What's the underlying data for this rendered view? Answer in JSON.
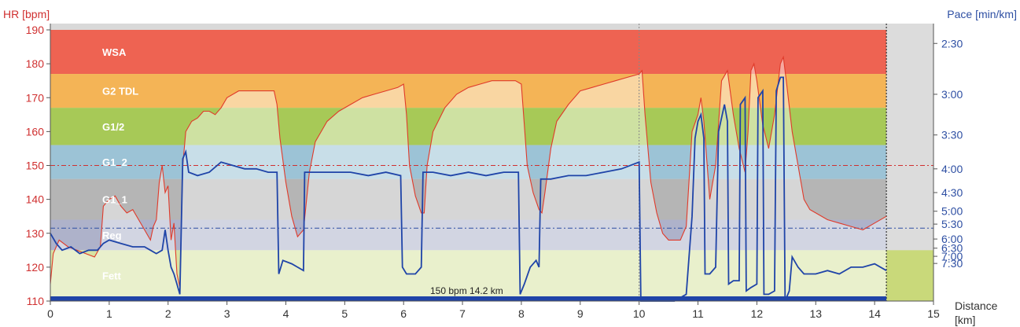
{
  "chart_data": {
    "type": "line",
    "left_axis_title": "HR [bpm]",
    "right_axis_title": "Pace [min/km]",
    "x_axis_title_line1": "Distance",
    "x_axis_title_line2": "[km]",
    "x_range": [
      0,
      15
    ],
    "x_ticks": [
      "0",
      "1",
      "2",
      "3",
      "4",
      "5",
      "6",
      "7",
      "8",
      "9",
      "10",
      "11",
      "12",
      "13",
      "14",
      "15"
    ],
    "hr_range": [
      110,
      190
    ],
    "hr_ticks": [
      "110",
      "120",
      "130",
      "140",
      "150",
      "160",
      "170",
      "180",
      "190"
    ],
    "pace_ticks": [
      {
        "label": "2:30",
        "hr": 186
      },
      {
        "label": "3:00",
        "hr": 171
      },
      {
        "label": "3:30",
        "hr": 159
      },
      {
        "label": "4:00",
        "hr": 149
      },
      {
        "label": "4:30",
        "hr": 142
      },
      {
        "label": "5:00",
        "hr": 136.5
      },
      {
        "label": "5:30",
        "hr": 132.7
      },
      {
        "label": "6:00",
        "hr": 128.3
      },
      {
        "label": "6:30",
        "hr": 125.6
      },
      {
        "label": "7:00",
        "hr": 123.2
      },
      {
        "label": "7:30",
        "hr": 121.1
      }
    ],
    "zones": [
      {
        "label": "WSA",
        "from": 177,
        "to": 190,
        "color": "#ee6352"
      },
      {
        "label": "G2 TDL",
        "from": 167,
        "to": 177,
        "color": "#f4b456"
      },
      {
        "label": "G1/2",
        "from": 156,
        "to": 167,
        "color": "#a7c957"
      },
      {
        "label": "G1_2",
        "from": 146,
        "to": 156,
        "color": "#9cc3d6"
      },
      {
        "label": "G1_1",
        "from": 134,
        "to": 146,
        "color": "#b5b5b5"
      },
      {
        "label": "Reg",
        "from": 125,
        "to": 134,
        "color": "#aeb2ca"
      },
      {
        "label": "Fett",
        "from": 110,
        "to": 125,
        "color": "#d7e3a3"
      }
    ],
    "ref_lines": [
      {
        "hr": 150,
        "color": "#d03030"
      },
      {
        "hr": 131.5,
        "color": "#2e4fa3"
      }
    ],
    "annotation": "150 bpm 14.2 km",
    "end_km": 14.2,
    "series": [
      {
        "role": "heart-rate",
        "color": "#e03a2a",
        "points": [
          [
            0,
            115
          ],
          [
            0.05,
            124
          ],
          [
            0.15,
            128
          ],
          [
            0.3,
            126
          ],
          [
            0.45,
            125
          ],
          [
            0.6,
            124
          ],
          [
            0.75,
            123
          ],
          [
            0.85,
            126
          ],
          [
            0.9,
            138
          ],
          [
            1.0,
            140
          ],
          [
            1.1,
            141
          ],
          [
            1.2,
            138
          ],
          [
            1.3,
            136
          ],
          [
            1.4,
            137
          ],
          [
            1.5,
            134
          ],
          [
            1.6,
            131
          ],
          [
            1.7,
            128
          ],
          [
            1.75,
            132
          ],
          [
            1.8,
            134
          ],
          [
            1.85,
            145
          ],
          [
            1.9,
            150
          ],
          [
            1.95,
            142
          ],
          [
            2.0,
            144
          ],
          [
            2.05,
            128
          ],
          [
            2.1,
            133
          ],
          [
            2.15,
            118
          ],
          [
            2.2,
            114
          ],
          [
            2.25,
            150
          ],
          [
            2.3,
            160
          ],
          [
            2.4,
            163
          ],
          [
            2.5,
            164
          ],
          [
            2.6,
            166
          ],
          [
            2.7,
            166
          ],
          [
            2.8,
            165
          ],
          [
            2.9,
            167
          ],
          [
            3.0,
            170
          ],
          [
            3.2,
            172
          ],
          [
            3.4,
            172
          ],
          [
            3.6,
            172
          ],
          [
            3.8,
            172
          ],
          [
            3.85,
            168
          ],
          [
            3.9,
            158
          ],
          [
            4.0,
            145
          ],
          [
            4.1,
            135
          ],
          [
            4.2,
            129
          ],
          [
            4.3,
            131
          ],
          [
            4.4,
            148
          ],
          [
            4.5,
            157
          ],
          [
            4.6,
            160
          ],
          [
            4.7,
            163
          ],
          [
            4.9,
            166
          ],
          [
            5.1,
            168
          ],
          [
            5.3,
            170
          ],
          [
            5.5,
            171
          ],
          [
            5.7,
            172
          ],
          [
            5.9,
            173
          ],
          [
            6.0,
            174
          ],
          [
            6.05,
            165
          ],
          [
            6.1,
            150
          ],
          [
            6.2,
            141
          ],
          [
            6.3,
            136
          ],
          [
            6.35,
            136
          ],
          [
            6.4,
            150
          ],
          [
            6.5,
            160
          ],
          [
            6.7,
            167
          ],
          [
            6.9,
            171
          ],
          [
            7.1,
            173
          ],
          [
            7.3,
            174
          ],
          [
            7.5,
            175
          ],
          [
            7.7,
            175
          ],
          [
            7.9,
            175
          ],
          [
            8.0,
            174
          ],
          [
            8.05,
            162
          ],
          [
            8.1,
            150
          ],
          [
            8.2,
            142
          ],
          [
            8.3,
            137
          ],
          [
            8.35,
            136
          ],
          [
            8.4,
            142
          ],
          [
            8.5,
            155
          ],
          [
            8.6,
            163
          ],
          [
            8.8,
            168
          ],
          [
            9.0,
            172
          ],
          [
            9.2,
            173
          ],
          [
            9.4,
            174
          ],
          [
            9.6,
            175
          ],
          [
            9.8,
            176
          ],
          [
            10.0,
            177
          ],
          [
            10.05,
            178
          ],
          [
            10.1,
            165
          ],
          [
            10.2,
            145
          ],
          [
            10.3,
            136
          ],
          [
            10.4,
            130
          ],
          [
            10.5,
            128
          ],
          [
            10.6,
            128
          ],
          [
            10.7,
            128
          ],
          [
            10.8,
            132
          ],
          [
            10.9,
            160
          ],
          [
            11.0,
            165
          ],
          [
            11.05,
            170
          ],
          [
            11.1,
            163
          ],
          [
            11.2,
            140
          ],
          [
            11.3,
            150
          ],
          [
            11.4,
            175
          ],
          [
            11.5,
            178
          ],
          [
            11.6,
            165
          ],
          [
            11.7,
            155
          ],
          [
            11.8,
            148
          ],
          [
            11.85,
            160
          ],
          [
            11.9,
            178
          ],
          [
            11.95,
            180
          ],
          [
            12.0,
            175
          ],
          [
            12.1,
            162
          ],
          [
            12.2,
            155
          ],
          [
            12.3,
            165
          ],
          [
            12.4,
            180
          ],
          [
            12.45,
            182
          ],
          [
            12.5,
            175
          ],
          [
            12.6,
            160
          ],
          [
            12.7,
            150
          ],
          [
            12.8,
            140
          ],
          [
            12.9,
            137
          ],
          [
            13.0,
            136
          ],
          [
            13.2,
            134
          ],
          [
            13.4,
            133
          ],
          [
            13.6,
            132
          ],
          [
            13.8,
            131
          ],
          [
            14.0,
            133
          ],
          [
            14.2,
            135
          ]
        ]
      },
      {
        "role": "pace",
        "color": "#1f44a8",
        "points": [
          [
            0,
            130
          ],
          [
            0.1,
            127
          ],
          [
            0.2,
            125
          ],
          [
            0.35,
            126
          ],
          [
            0.5,
            124
          ],
          [
            0.65,
            125
          ],
          [
            0.8,
            125
          ],
          [
            0.9,
            127
          ],
          [
            1.0,
            128
          ],
          [
            1.2,
            127
          ],
          [
            1.4,
            126
          ],
          [
            1.6,
            126
          ],
          [
            1.7,
            125
          ],
          [
            1.8,
            124
          ],
          [
            1.9,
            125
          ],
          [
            1.95,
            131
          ],
          [
            2.0,
            125
          ],
          [
            2.05,
            120
          ],
          [
            2.1,
            118
          ],
          [
            2.15,
            115
          ],
          [
            2.2,
            112
          ],
          [
            2.25,
            152
          ],
          [
            2.3,
            154
          ],
          [
            2.35,
            148
          ],
          [
            2.5,
            147
          ],
          [
            2.7,
            148
          ],
          [
            2.9,
            151
          ],
          [
            3.1,
            150
          ],
          [
            3.3,
            149
          ],
          [
            3.5,
            149
          ],
          [
            3.7,
            148
          ],
          [
            3.85,
            148
          ],
          [
            3.88,
            118
          ],
          [
            3.95,
            122
          ],
          [
            4.1,
            121
          ],
          [
            4.2,
            120
          ],
          [
            4.3,
            119
          ],
          [
            4.32,
            148
          ],
          [
            4.5,
            148
          ],
          [
            4.8,
            148
          ],
          [
            5.1,
            148
          ],
          [
            5.4,
            147
          ],
          [
            5.7,
            148
          ],
          [
            5.95,
            147
          ],
          [
            5.98,
            120
          ],
          [
            6.05,
            118
          ],
          [
            6.2,
            118
          ],
          [
            6.3,
            120
          ],
          [
            6.33,
            148
          ],
          [
            6.5,
            148
          ],
          [
            6.8,
            147
          ],
          [
            7.1,
            148
          ],
          [
            7.4,
            147
          ],
          [
            7.7,
            148
          ],
          [
            7.95,
            148
          ],
          [
            7.98,
            112
          ],
          [
            8.05,
            115
          ],
          [
            8.15,
            120
          ],
          [
            8.25,
            122
          ],
          [
            8.3,
            120
          ],
          [
            8.33,
            146
          ],
          [
            8.5,
            146
          ],
          [
            8.8,
            147
          ],
          [
            9.1,
            147
          ],
          [
            9.4,
            148
          ],
          [
            9.7,
            149
          ],
          [
            10.0,
            151
          ],
          [
            10.03,
            110
          ],
          [
            10.4,
            110
          ],
          [
            10.6,
            110
          ],
          [
            10.8,
            112
          ],
          [
            10.9,
            135
          ],
          [
            10.95,
            158
          ],
          [
            11.0,
            163
          ],
          [
            11.05,
            165
          ],
          [
            11.1,
            158
          ],
          [
            11.12,
            118
          ],
          [
            11.2,
            118
          ],
          [
            11.3,
            120
          ],
          [
            11.35,
            160
          ],
          [
            11.45,
            168
          ],
          [
            11.5,
            163
          ],
          [
            11.52,
            115
          ],
          [
            11.6,
            116
          ],
          [
            11.7,
            116
          ],
          [
            11.72,
            168
          ],
          [
            11.8,
            170
          ],
          [
            11.82,
            113
          ],
          [
            11.9,
            114
          ],
          [
            12.0,
            115
          ],
          [
            12.02,
            170
          ],
          [
            12.1,
            172
          ],
          [
            12.12,
            112
          ],
          [
            12.2,
            112
          ],
          [
            12.3,
            113
          ],
          [
            12.33,
            172
          ],
          [
            12.4,
            176
          ],
          [
            12.45,
            176
          ],
          [
            12.48,
            110
          ],
          [
            12.55,
            113
          ],
          [
            12.6,
            123
          ],
          [
            12.7,
            120
          ],
          [
            12.8,
            118
          ],
          [
            13.0,
            118
          ],
          [
            13.2,
            119
          ],
          [
            13.4,
            118
          ],
          [
            13.6,
            120
          ],
          [
            13.8,
            120
          ],
          [
            14.0,
            121
          ],
          [
            14.2,
            119
          ]
        ]
      }
    ]
  }
}
